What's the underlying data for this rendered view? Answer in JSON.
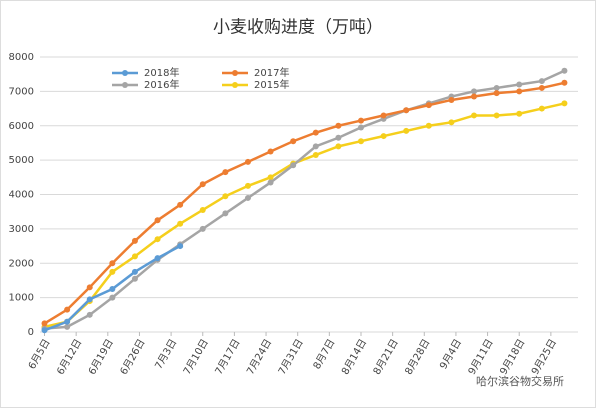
{
  "chart_data": {
    "type": "line",
    "title": "小麦收购进度（万吨）",
    "x": [
      0,
      5,
      10,
      15,
      20,
      25,
      30,
      35,
      40,
      45,
      50,
      55,
      60,
      65,
      70,
      75,
      80,
      85,
      90,
      95,
      100,
      105,
      110,
      115
    ],
    "xlim": [
      -1,
      118
    ],
    "xticks": [
      {
        "value": 0,
        "label": "6月5日"
      },
      {
        "value": 7,
        "label": "6月12日"
      },
      {
        "value": 14,
        "label": "6月19日"
      },
      {
        "value": 21,
        "label": "6月26日"
      },
      {
        "value": 28,
        "label": "7月3日"
      },
      {
        "value": 35,
        "label": "7月10日"
      },
      {
        "value": 42,
        "label": "7月17日"
      },
      {
        "value": 49,
        "label": "7月24日"
      },
      {
        "value": 56,
        "label": "7月31日"
      },
      {
        "value": 63,
        "label": "8月7日"
      },
      {
        "value": 70,
        "label": "8月14日"
      },
      {
        "value": 77,
        "label": "8月21日"
      },
      {
        "value": 84,
        "label": "8月28日"
      },
      {
        "value": 91,
        "label": "9月4日"
      },
      {
        "value": 98,
        "label": "9月11日"
      },
      {
        "value": 105,
        "label": "9月18日"
      },
      {
        "value": 112,
        "label": "9月25日"
      }
    ],
    "ylim": [
      0,
      8000
    ],
    "yticks": [
      0,
      1000,
      2000,
      3000,
      4000,
      5000,
      6000,
      7000,
      8000
    ],
    "grid": true,
    "series": [
      {
        "name": "2018年",
        "color": "#5b9bd5",
        "values": [
          50,
          300,
          950,
          1250,
          1750,
          2150,
          2500,
          null,
          null,
          null,
          null,
          null,
          null,
          null,
          null,
          null,
          null,
          null,
          null,
          null,
          null,
          null,
          null,
          null
        ]
      },
      {
        "name": "2017年",
        "color": "#ed7d31",
        "values": [
          250,
          650,
          1300,
          2000,
          2650,
          3250,
          3700,
          4300,
          4650,
          4950,
          5250,
          5550,
          5800,
          6000,
          6150,
          6300,
          6450,
          6600,
          6750,
          6850,
          6950,
          7000,
          7100,
          7250
        ]
      },
      {
        "name": "2016年",
        "color": "#a5a5a5",
        "values": [
          100,
          150,
          500,
          1000,
          1550,
          2100,
          2550,
          3000,
          3450,
          3900,
          4350,
          4850,
          5400,
          5650,
          5950,
          6200,
          6450,
          6650,
          6850,
          7000,
          7100,
          7200,
          7300,
          7600
        ]
      },
      {
        "name": "2015年",
        "color": "#f5cf1c",
        "values": [
          150,
          300,
          900,
          1750,
          2200,
          2700,
          3150,
          3550,
          3950,
          4250,
          4500,
          4900,
          5150,
          5400,
          5550,
          5700,
          5850,
          6000,
          6100,
          6300,
          6300,
          6350,
          6500,
          6650
        ]
      }
    ],
    "watermark": "哈尔滨谷物交易所"
  }
}
